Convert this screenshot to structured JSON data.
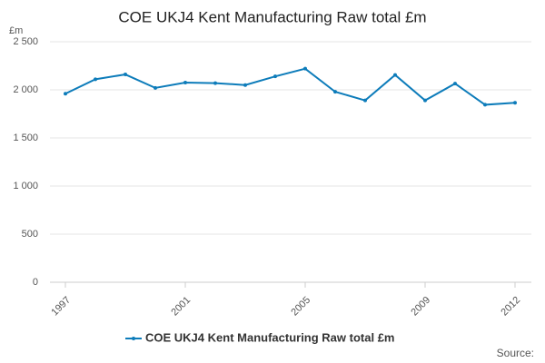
{
  "chart_data": {
    "type": "line",
    "title": "COE UKJ4 Kent Manufacturing Raw total £m",
    "y_label": "£m",
    "source": "Source:",
    "x": [
      1997,
      1998,
      1999,
      2000,
      2001,
      2002,
      2003,
      2004,
      2005,
      2006,
      2007,
      2008,
      2009,
      2010,
      2011,
      2012
    ],
    "xlim": [
      1997,
      2012
    ],
    "xticks": [
      1997,
      2001,
      2005,
      2009,
      2012
    ],
    "ylim": [
      0,
      2500
    ],
    "yticks": [
      0,
      500,
      {
        "value": 1000,
        "label": "1 000"
      },
      {
        "value": 1500,
        "label": "1 500"
      },
      {
        "value": 2000,
        "label": "2 000"
      },
      {
        "value": 2500,
        "label": "2 500"
      }
    ],
    "grid": true,
    "legend": "bottom",
    "series": [
      {
        "name": "COE UKJ4 Kent Manufacturing Raw total £m",
        "color": "#0d7cba",
        "values": [
          1960,
          2110,
          2160,
          2020,
          2075,
          2070,
          2050,
          2140,
          2220,
          1980,
          1890,
          2155,
          1890,
          2065,
          1845,
          1865
        ]
      }
    ]
  }
}
